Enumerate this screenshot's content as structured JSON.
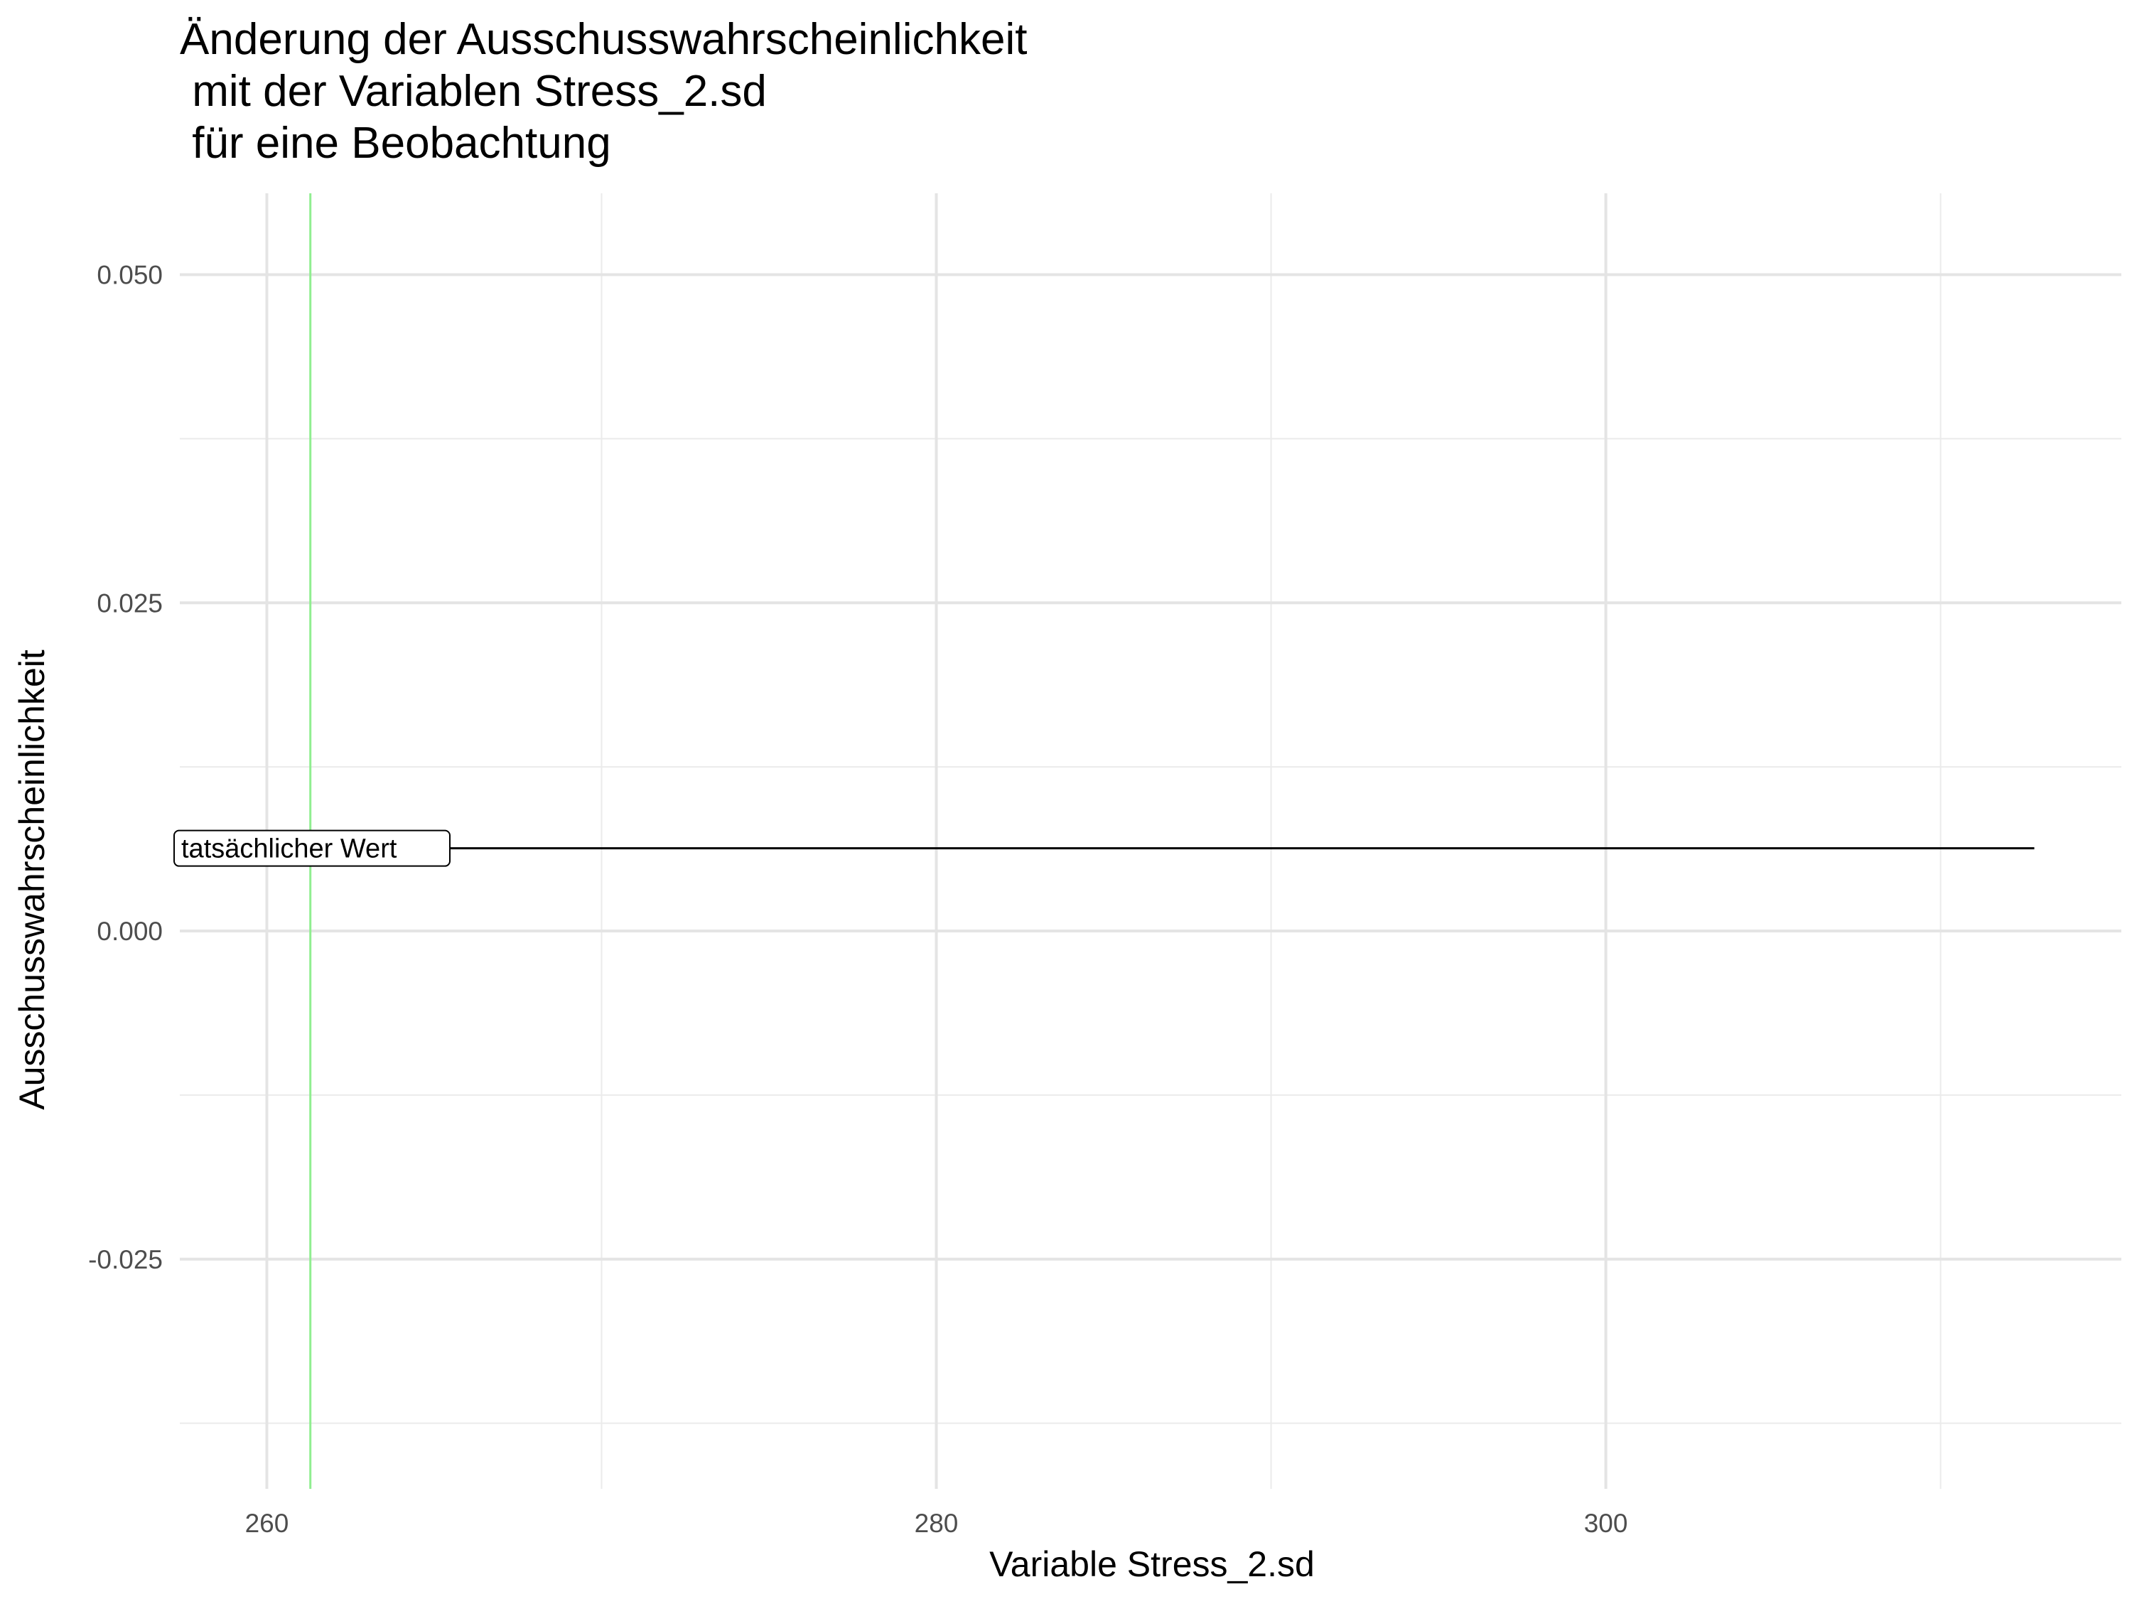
{
  "chart_data": {
    "type": "line",
    "title_lines": [
      "Änderung der Ausschusswahrscheinlichkeit",
      " mit der Variablen Stress_2.sd",
      " für eine Beobachtung"
    ],
    "xlabel": "Variable Stress_2.sd",
    "ylabel": "Ausschusswahrscheinlichkeit",
    "xlim": [
      257.4,
      315.4
    ],
    "ylim": [
      -0.0425,
      0.0562
    ],
    "x_ticks": [
      260,
      280,
      300
    ],
    "x_tick_labels": [
      "260",
      "280",
      "300"
    ],
    "x_minor_ticks": [
      270,
      290,
      310
    ],
    "y_ticks": [
      0.05,
      0.025,
      0.0,
      -0.025
    ],
    "y_tick_labels": [
      "0.050",
      "0.025",
      "0.000",
      "-0.025"
    ],
    "y_minor_ticks": [
      0.0375,
      0.0125,
      -0.0125,
      -0.0375
    ],
    "grid": true,
    "series": [
      {
        "x": [
          257.4,
          312.8
        ],
        "y": [
          0.0063,
          0.0063
        ],
        "color": "#000000"
      }
    ],
    "vline": {
      "x": 261.3,
      "color": "#90ee90"
    },
    "annotation": {
      "text": "tatsächlicher Wert",
      "x": 257.4,
      "y": 0.0063
    }
  }
}
